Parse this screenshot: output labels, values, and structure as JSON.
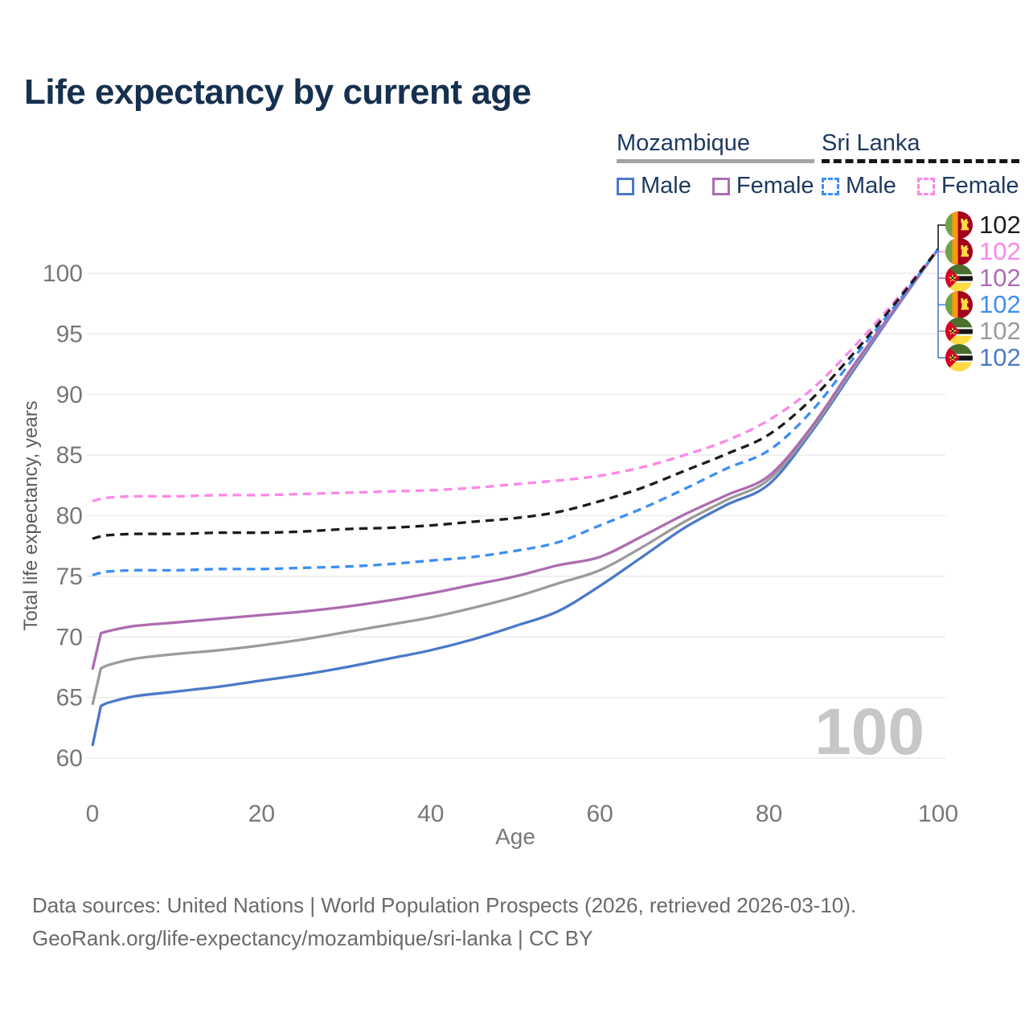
{
  "title": "Life expectancy by current age",
  "legend": {
    "groups": [
      {
        "name": "Mozambique",
        "underline_style": "solid",
        "underline_color": "#a3a3a3",
        "items": [
          {
            "label": "Male",
            "color": "#4b79c8",
            "dash": false
          },
          {
            "label": "Female",
            "color": "#ad6cb0",
            "dash": false
          }
        ]
      },
      {
        "name": "Sri Lanka",
        "underline_style": "dashed",
        "underline_color": "#161616",
        "items": [
          {
            "label": "Male",
            "color": "#3e8ef6",
            "dash": true
          },
          {
            "label": "Female",
            "color": "#fd87ea",
            "dash": true
          }
        ]
      }
    ]
  },
  "chart_data": {
    "type": "line",
    "title": "Life expectancy by current age",
    "xlabel": "Age",
    "ylabel": "Total life expectancy, years",
    "xlim": [
      0,
      100
    ],
    "ylim": [
      60,
      102
    ],
    "x_ticks": [
      0,
      20,
      40,
      60,
      80,
      100
    ],
    "y_ticks": [
      60,
      65,
      70,
      75,
      80,
      85,
      90,
      95,
      100
    ],
    "grid": true,
    "legend_position": "top-right",
    "x": [
      0,
      1,
      2,
      5,
      10,
      15,
      20,
      25,
      30,
      35,
      40,
      45,
      50,
      55,
      60,
      65,
      70,
      75,
      80,
      85,
      90,
      95,
      100
    ],
    "series": [
      {
        "id": "mz-male",
        "name": "Mozambique Male",
        "country": "Mozambique",
        "sex": "Male",
        "color": "#4b79c8",
        "dash": false,
        "values": [
          61.0,
          64.3,
          64.6,
          65.1,
          65.5,
          65.9,
          66.4,
          66.9,
          67.5,
          68.2,
          68.9,
          69.8,
          70.9,
          72.1,
          74.2,
          76.6,
          79.0,
          80.9,
          82.6,
          86.9,
          92.0,
          97.1,
          102
        ]
      },
      {
        "id": "mz-both",
        "name": "Mozambique Both sexes",
        "country": "Mozambique",
        "sex": "Both",
        "color": "#9b9b9b",
        "dash": false,
        "values": [
          64.4,
          67.4,
          67.7,
          68.2,
          68.6,
          68.9,
          69.3,
          69.8,
          70.4,
          71.0,
          71.6,
          72.4,
          73.3,
          74.4,
          75.5,
          77.4,
          79.5,
          81.3,
          83.0,
          87.1,
          92.2,
          97.2,
          102
        ]
      },
      {
        "id": "mz-female",
        "name": "Mozambique Female",
        "country": "Mozambique",
        "sex": "Female",
        "color": "#ad6cb0",
        "dash": false,
        "values": [
          67.3,
          70.3,
          70.5,
          70.9,
          71.2,
          71.5,
          71.8,
          72.1,
          72.5,
          73.0,
          73.6,
          74.3,
          75.0,
          75.9,
          76.6,
          78.3,
          80.1,
          81.7,
          83.3,
          87.3,
          92.4,
          97.2,
          102
        ]
      },
      {
        "id": "sl-male",
        "name": "Sri Lanka Male",
        "country": "Sri Lanka",
        "sex": "Male",
        "color": "#3e8ef6",
        "dash": true,
        "values": [
          75.1,
          75.3,
          75.4,
          75.5,
          75.5,
          75.6,
          75.6,
          75.7,
          75.8,
          76.0,
          76.3,
          76.6,
          77.1,
          77.8,
          79.2,
          80.6,
          82.2,
          83.9,
          85.4,
          88.6,
          93.0,
          97.4,
          102
        ]
      },
      {
        "id": "sl-female",
        "name": "Sri Lanka Female",
        "country": "Sri Lanka",
        "sex": "Female",
        "color": "#fd87ea",
        "dash": true,
        "values": [
          81.2,
          81.4,
          81.5,
          81.6,
          81.6,
          81.7,
          81.7,
          81.8,
          81.9,
          82.0,
          82.1,
          82.3,
          82.6,
          82.9,
          83.3,
          84.0,
          85.0,
          86.2,
          87.9,
          90.4,
          93.9,
          97.8,
          102
        ]
      },
      {
        "id": "sl-both",
        "name": "Sri Lanka Both sexes",
        "country": "Sri Lanka",
        "sex": "Both",
        "color": "#1b1b1b",
        "dash": true,
        "values": [
          78.1,
          78.3,
          78.4,
          78.5,
          78.5,
          78.6,
          78.6,
          78.7,
          78.9,
          79.0,
          79.2,
          79.5,
          79.8,
          80.3,
          81.2,
          82.3,
          83.7,
          85.1,
          86.7,
          89.6,
          93.4,
          97.6,
          102
        ]
      }
    ]
  },
  "end_labels": [
    {
      "flag": "sri-lanka",
      "value": "102",
      "color": "#1b1b1b"
    },
    {
      "flag": "sri-lanka",
      "value": "102",
      "color": "#fd87ea"
    },
    {
      "flag": "mozambique",
      "value": "102",
      "color": "#ad6cb0"
    },
    {
      "flag": "sri-lanka",
      "value": "102",
      "color": "#3e8ef6"
    },
    {
      "flag": "mozambique",
      "value": "102",
      "color": "#9b9b9b"
    },
    {
      "flag": "mozambique",
      "value": "102",
      "color": "#4b79c8"
    }
  ],
  "watermark": "100",
  "footer": {
    "line1": "Data sources: United Nations | World Population Prospects (2026, retrieved 2026-03-10).",
    "line2": "GeoRank.org/life-expectancy/mozambique/sri-lanka | CC BY"
  }
}
